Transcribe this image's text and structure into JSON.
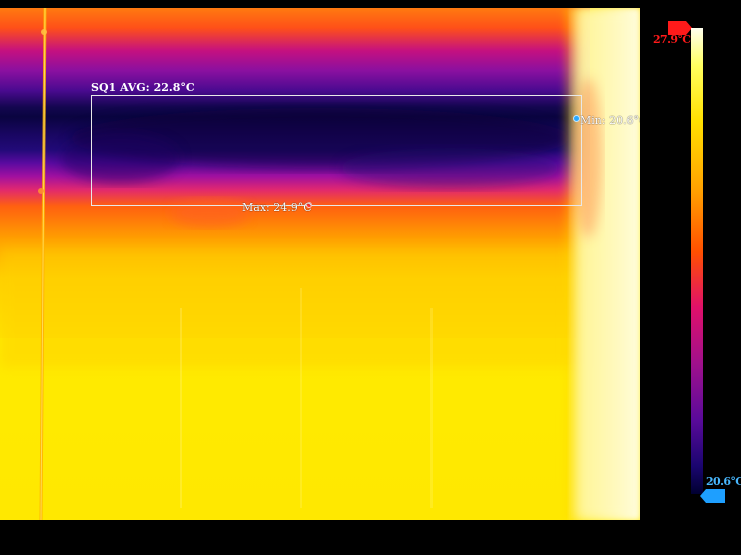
{
  "roi": {
    "label": "SQ1 AVG: 22.8°C"
  },
  "spots": {
    "min_label": "Min: 20.6°C",
    "max_label": "Max: 24.9°C"
  },
  "scale": {
    "max_label": "27.9°C",
    "min_label": "20.6°C"
  },
  "colors": {
    "palette": "iron",
    "max_marker": "#ff1a1a",
    "min_marker": "#2aa8ff"
  }
}
